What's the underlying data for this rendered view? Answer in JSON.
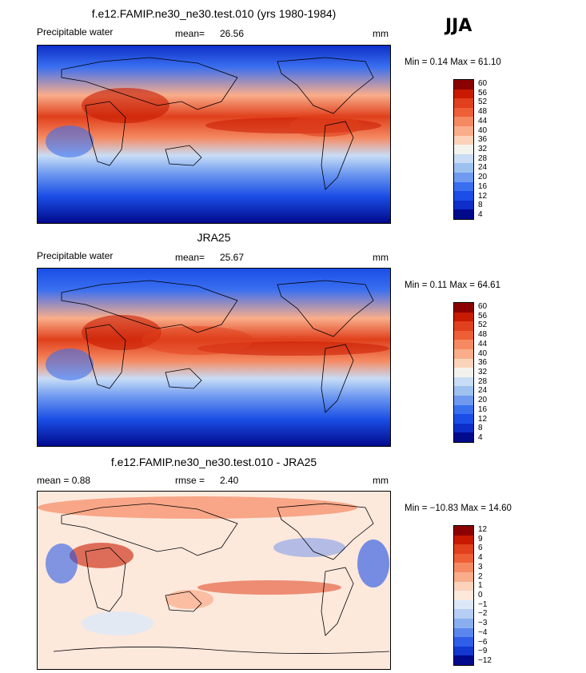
{
  "season": "JJA",
  "panels": [
    {
      "title": "f.e12.FAMIP.ne30_ne30.test.010 (yrs 1980-1984)",
      "left_label": "Precipitable water",
      "stat_label": "mean=",
      "stat_value": "26.56",
      "units": "mm",
      "minmax": "Min =   0.14 Max =  61.10",
      "style": "abs"
    },
    {
      "title": "JRA25",
      "left_label": "Precipitable water",
      "stat_label": "mean=",
      "stat_value": "25.67",
      "units": "mm",
      "minmax": "Min =   0.11 Max =  64.61",
      "style": "abs"
    },
    {
      "title": "f.e12.FAMIP.ne30_ne30.test.010 - JRA25",
      "left_label": "mean =   0.88",
      "stat_label": "rmse =",
      "stat_value": "2.40",
      "units": "mm",
      "minmax": "Min = −10.83 Max =  14.60",
      "style": "diff"
    }
  ],
  "colorbars": {
    "abs": {
      "levels": [
        "60",
        "56",
        "52",
        "48",
        "44",
        "40",
        "36",
        "32",
        "28",
        "24",
        "20",
        "16",
        "12",
        "8",
        "4"
      ],
      "colors": [
        "#8b0000",
        "#c81a00",
        "#e0401c",
        "#ef5f36",
        "#f58a62",
        "#f9ad8a",
        "#fbd3bb",
        "#f4f2ee",
        "#c8dcf6",
        "#9ec1f0",
        "#6f9af0",
        "#3a6ff0",
        "#1a4ee6",
        "#0d2fc8",
        "#020a8c"
      ]
    },
    "diff": {
      "levels": [
        "12",
        "9",
        "6",
        "4",
        "3",
        "2",
        "1",
        "0",
        "−1",
        "−2",
        "−3",
        "−4",
        "−6",
        "−9",
        "−12"
      ],
      "colors": [
        "#8b0000",
        "#c81a00",
        "#e0401c",
        "#ef5f36",
        "#f58a62",
        "#f9ad8a",
        "#fbd3bb",
        "#fde8dc",
        "#dce8f8",
        "#b6cdf4",
        "#8aaef0",
        "#5a86ee",
        "#2f5ee8",
        "#1238d0",
        "#020a8c"
      ]
    }
  }
}
